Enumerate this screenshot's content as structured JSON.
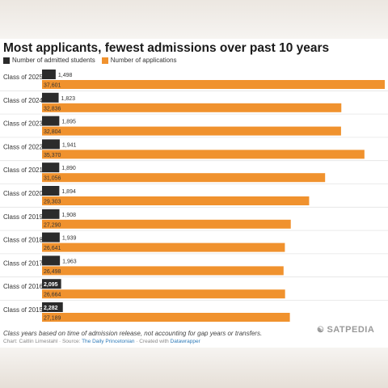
{
  "chart_data": {
    "type": "bar",
    "orientation": "horizontal",
    "title": "Most applicants, fewest admissions over past 10 years",
    "categories": [
      "Class of 2025",
      "Class of 2024",
      "Class of 2023",
      "Class of 2022",
      "Class of 2021",
      "Class of 2020",
      "Class of 2019",
      "Class of 2018",
      "Class of 2017",
      "Class of 2016",
      "Class of 2015"
    ],
    "series": [
      {
        "name": "Number of admitted students",
        "color": "#2b2b2b",
        "values": [
          1498,
          1823,
          1895,
          1941,
          1890,
          1894,
          1908,
          1939,
          1963,
          2095,
          2282
        ],
        "labels": [
          "1,498",
          "1,823",
          "1,895",
          "1,941",
          "1,890",
          "1,894",
          "1,908",
          "1,939",
          "1,963",
          "2,095",
          "2,282"
        ]
      },
      {
        "name": "Number of applications",
        "color": "#f0922e",
        "values": [
          37601,
          32836,
          32804,
          35370,
          31056,
          29303,
          27290,
          26641,
          26498,
          26664,
          27189
        ],
        "labels": [
          "37,601",
          "32,836",
          "32,804",
          "35,370",
          "31,056",
          "29,303",
          "27,290",
          "26,641",
          "26,498",
          "26,664",
          "27,189"
        ]
      }
    ],
    "legend_position": "top-left",
    "grid": false
  },
  "footnote": "Class years based on time of admission release, not accounting for gap years or transfers.",
  "credit": {
    "prefix": "Chart: Caitlin Limestahl · Source: ",
    "source": "The Daily Princetonian",
    "middle": " · Created with ",
    "tool": "Datawrapper"
  },
  "watermark": "SATPEDIA"
}
